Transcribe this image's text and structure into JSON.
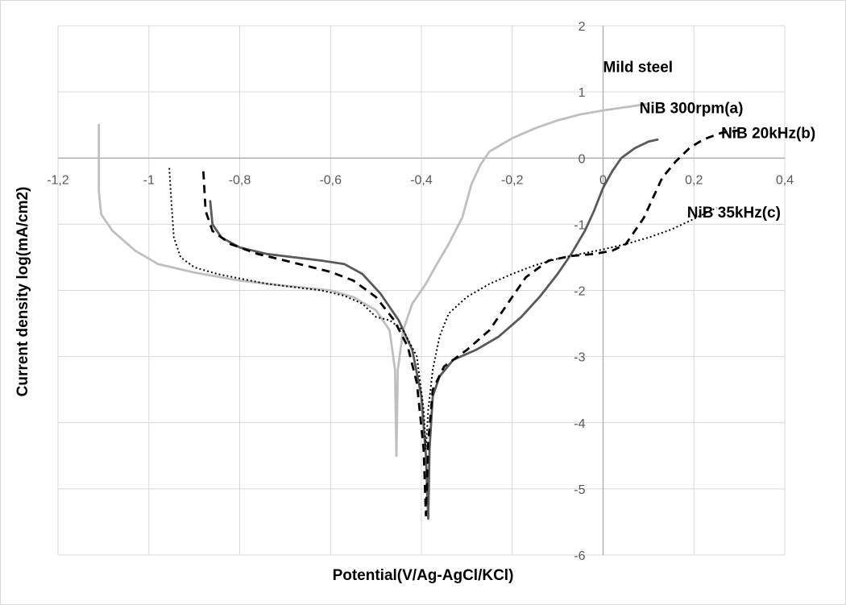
{
  "chart_data": {
    "type": "line",
    "title": "",
    "xlabel": "Potential(V/Ag-AgCl/KCl)",
    "ylabel": "Current density log(mA/cm2)",
    "xlim": [
      -1.2,
      0.4
    ],
    "ylim": [
      -6,
      2
    ],
    "x_ticks": [
      -1.2,
      -1,
      -0.8,
      -0.6,
      -0.4,
      -0.2,
      0,
      0.2,
      0.4
    ],
    "x_tick_labels": [
      "-1,2",
      "-1",
      "-0,8",
      "-0,6",
      "-0,4",
      "-0,2",
      "0",
      "0,2",
      "0,4"
    ],
    "y_ticks": [
      2,
      1,
      0,
      -1,
      -2,
      -3,
      -4,
      -5,
      -6
    ],
    "y_tick_labels": [
      "2",
      "1",
      "0",
      "-1",
      "-2",
      "-3",
      "-4",
      "-5",
      "-6"
    ],
    "grid": true,
    "legend": "none (series labeled directly on plot)",
    "series": [
      {
        "name": "Mild steel",
        "color": "#bfbfbf",
        "dash": "solid",
        "points": [
          [
            -1.11,
            0.5
          ],
          [
            -1.11,
            0
          ],
          [
            -1.11,
            -0.5
          ],
          [
            -1.105,
            -0.85
          ],
          [
            -1.08,
            -1.1
          ],
          [
            -1.03,
            -1.4
          ],
          [
            -0.98,
            -1.6
          ],
          [
            -0.9,
            -1.73
          ],
          [
            -0.8,
            -1.85
          ],
          [
            -0.7,
            -1.93
          ],
          [
            -0.6,
            -2.0
          ],
          [
            -0.55,
            -2.1
          ],
          [
            -0.5,
            -2.3
          ],
          [
            -0.47,
            -2.6
          ],
          [
            -0.458,
            -3.2
          ],
          [
            -0.455,
            -4.5
          ],
          [
            -0.452,
            -3.2
          ],
          [
            -0.44,
            -2.6
          ],
          [
            -0.42,
            -2.2
          ],
          [
            -0.39,
            -1.9
          ],
          [
            -0.37,
            -1.65
          ],
          [
            -0.34,
            -1.3
          ],
          [
            -0.31,
            -0.9
          ],
          [
            -0.29,
            -0.4
          ],
          [
            -0.27,
            -0.1
          ],
          [
            -0.25,
            0.1
          ],
          [
            -0.2,
            0.3
          ],
          [
            -0.15,
            0.45
          ],
          [
            -0.1,
            0.57
          ],
          [
            -0.05,
            0.66
          ],
          [
            0,
            0.72
          ],
          [
            0.05,
            0.77
          ],
          [
            0.1,
            0.82
          ]
        ]
      },
      {
        "name": "NiB 300rpm(a)",
        "color": "#595959",
        "dash": "solid",
        "points": [
          [
            -0.865,
            -0.65
          ],
          [
            -0.86,
            -1.0
          ],
          [
            -0.84,
            -1.2
          ],
          [
            -0.8,
            -1.35
          ],
          [
            -0.74,
            -1.45
          ],
          [
            -0.68,
            -1.5
          ],
          [
            -0.62,
            -1.55
          ],
          [
            -0.57,
            -1.6
          ],
          [
            -0.53,
            -1.75
          ],
          [
            -0.49,
            -2.05
          ],
          [
            -0.45,
            -2.45
          ],
          [
            -0.42,
            -2.9
          ],
          [
            -0.4,
            -3.6
          ],
          [
            -0.39,
            -4.5
          ],
          [
            -0.385,
            -5.45
          ],
          [
            -0.382,
            -4.4
          ],
          [
            -0.375,
            -3.6
          ],
          [
            -0.36,
            -3.3
          ],
          [
            -0.33,
            -3.05
          ],
          [
            -0.28,
            -2.9
          ],
          [
            -0.23,
            -2.7
          ],
          [
            -0.18,
            -2.4
          ],
          [
            -0.14,
            -2.1
          ],
          [
            -0.1,
            -1.75
          ],
          [
            -0.07,
            -1.45
          ],
          [
            -0.04,
            -1.1
          ],
          [
            -0.02,
            -0.8
          ],
          [
            0,
            -0.45
          ],
          [
            0.02,
            -0.2
          ],
          [
            0.04,
            0
          ],
          [
            0.07,
            0.15
          ],
          [
            0.1,
            0.25
          ],
          [
            0.12,
            0.28
          ]
        ]
      },
      {
        "name": "NiB 20kHz(b)",
        "color": "#000000",
        "dash": "10,7",
        "points": [
          [
            -0.88,
            -0.2
          ],
          [
            -0.875,
            -0.8
          ],
          [
            -0.86,
            -1.1
          ],
          [
            -0.82,
            -1.3
          ],
          [
            -0.76,
            -1.45
          ],
          [
            -0.7,
            -1.55
          ],
          [
            -0.64,
            -1.65
          ],
          [
            -0.6,
            -1.72
          ],
          [
            -0.55,
            -1.85
          ],
          [
            -0.5,
            -2.1
          ],
          [
            -0.46,
            -2.45
          ],
          [
            -0.43,
            -2.85
          ],
          [
            -0.41,
            -3.4
          ],
          [
            -0.395,
            -4.4
          ],
          [
            -0.39,
            -5.4
          ],
          [
            -0.385,
            -4.3
          ],
          [
            -0.375,
            -3.5
          ],
          [
            -0.35,
            -3.15
          ],
          [
            -0.3,
            -2.9
          ],
          [
            -0.25,
            -2.6
          ],
          [
            -0.21,
            -2.2
          ],
          [
            -0.17,
            -1.8
          ],
          [
            -0.12,
            -1.55
          ],
          [
            -0.07,
            -1.48
          ],
          [
            -0.02,
            -1.45
          ],
          [
            0.02,
            -1.4
          ],
          [
            0.05,
            -1.3
          ],
          [
            0.07,
            -1.1
          ],
          [
            0.09,
            -0.9
          ],
          [
            0.11,
            -0.6
          ],
          [
            0.13,
            -0.3
          ],
          [
            0.16,
            -0.05
          ],
          [
            0.19,
            0.15
          ],
          [
            0.22,
            0.28
          ],
          [
            0.26,
            0.38
          ],
          [
            0.3,
            0.42
          ]
        ]
      },
      {
        "name": "NiB 35kHz(c)",
        "color": "#000000",
        "dash": "2,3",
        "points": [
          [
            -0.955,
            -0.15
          ],
          [
            -0.95,
            -0.7
          ],
          [
            -0.945,
            -1.2
          ],
          [
            -0.93,
            -1.5
          ],
          [
            -0.9,
            -1.65
          ],
          [
            -0.85,
            -1.75
          ],
          [
            -0.8,
            -1.82
          ],
          [
            -0.74,
            -1.9
          ],
          [
            -0.68,
            -1.95
          ],
          [
            -0.62,
            -2.0
          ],
          [
            -0.57,
            -2.08
          ],
          [
            -0.53,
            -2.2
          ],
          [
            -0.5,
            -2.4
          ],
          [
            -0.47,
            -2.45
          ],
          [
            -0.44,
            -2.6
          ],
          [
            -0.41,
            -3.0
          ],
          [
            -0.395,
            -3.8
          ],
          [
            -0.39,
            -4.4
          ],
          [
            -0.385,
            -3.8
          ],
          [
            -0.375,
            -3.2
          ],
          [
            -0.36,
            -2.7
          ],
          [
            -0.34,
            -2.35
          ],
          [
            -0.3,
            -2.1
          ],
          [
            -0.25,
            -1.9
          ],
          [
            -0.2,
            -1.75
          ],
          [
            -0.15,
            -1.62
          ],
          [
            -0.1,
            -1.52
          ],
          [
            -0.05,
            -1.45
          ],
          [
            0,
            -1.38
          ],
          [
            0.05,
            -1.3
          ],
          [
            0.1,
            -1.2
          ],
          [
            0.15,
            -1.08
          ],
          [
            0.2,
            -0.92
          ],
          [
            0.25,
            -0.75
          ]
        ]
      }
    ],
    "annotations": [
      {
        "text": "Mild steel",
        "x": 0.0,
        "y": 1.3
      },
      {
        "text": "NiB 300rpm(a)",
        "x": 0.08,
        "y": 0.68
      },
      {
        "text": "NiB 20kHz(b)",
        "x": 0.26,
        "y": 0.3
      },
      {
        "text": "NiB 35kHz(c)",
        "x": 0.185,
        "y": -0.9
      }
    ]
  }
}
